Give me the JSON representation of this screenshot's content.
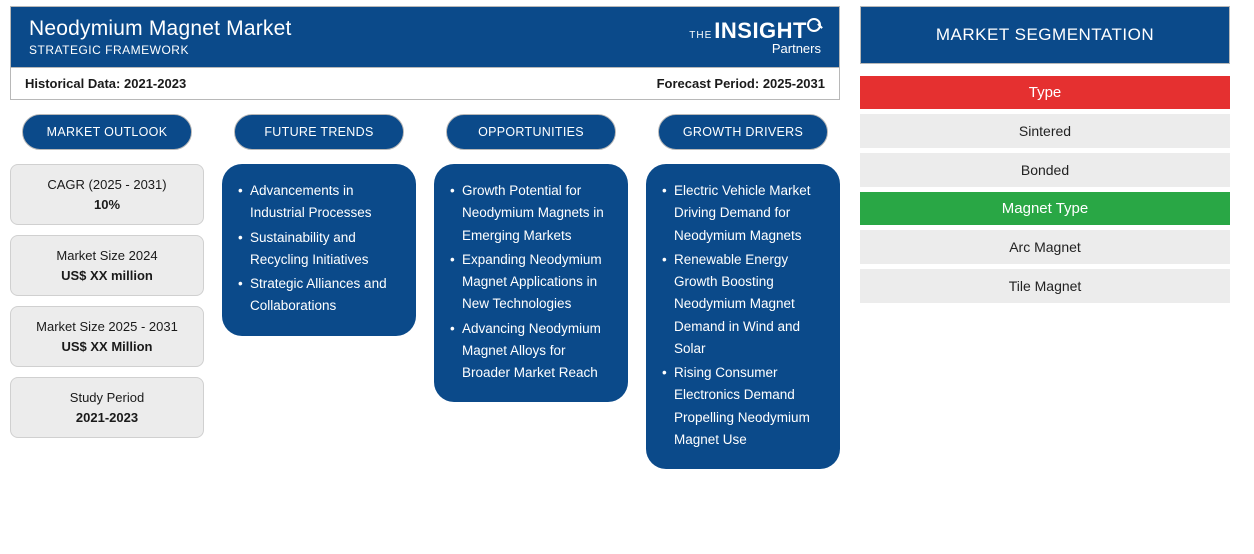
{
  "header": {
    "title": "Neodymium Magnet Market",
    "subtitle": "STRATEGIC FRAMEWORK",
    "logo_the": "THE",
    "logo_main": "INSIGHT",
    "logo_sub": "Partners"
  },
  "period": {
    "historical_label": "Historical Data:",
    "historical_value": "2021-2023",
    "forecast_label": "Forecast Period:",
    "forecast_value": "2025-2031"
  },
  "colors": {
    "header_bg": "#0b4a8a",
    "card_bg": "#0b4a8a",
    "box_bg": "#ececec",
    "border": "#b8b8b8",
    "text": "#1a1a1a",
    "white": "#ffffff"
  },
  "columns": {
    "outlook": {
      "heading": "MARKET OUTLOOK",
      "boxes": [
        {
          "label": "CAGR (2025 - 2031)",
          "value": "10%"
        },
        {
          "label": "Market Size 2024",
          "value": "US$ XX million"
        },
        {
          "label": "Market Size 2025 - 2031",
          "value": "US$ XX Million"
        },
        {
          "label": "Study Period",
          "value": "2021-2023"
        }
      ]
    },
    "trends": {
      "heading": "FUTURE TRENDS",
      "items": [
        "Advancements in Industrial Processes",
        "Sustainability and Recycling Initiatives",
        "Strategic Alliances and Collaborations"
      ]
    },
    "opportunities": {
      "heading": "OPPORTUNITIES",
      "items": [
        "Growth Potential for Neodymium Magnets in Emerging Markets",
        "Expanding Neodymium Magnet Applications in New Technologies",
        "Advancing Neodymium Magnet Alloys for Broader Market Reach"
      ]
    },
    "drivers": {
      "heading": "GROWTH DRIVERS",
      "items": [
        "Electric Vehicle Market Driving Demand for Neodymium Magnets",
        "Renewable Energy Growth Boosting Neodymium Magnet Demand in Wind and Solar",
        "Rising Consumer Electronics Demand Propelling Neodymium Magnet Use"
      ]
    }
  },
  "segmentation": {
    "heading": "MARKET SEGMENTATION",
    "groups": [
      {
        "name": "Type",
        "color": "#e53030",
        "items": [
          "Sintered",
          "Bonded"
        ]
      },
      {
        "name": "Magnet Type",
        "color": "#29a745",
        "items": [
          "Arc Magnet",
          "Tile Magnet"
        ]
      }
    ]
  }
}
